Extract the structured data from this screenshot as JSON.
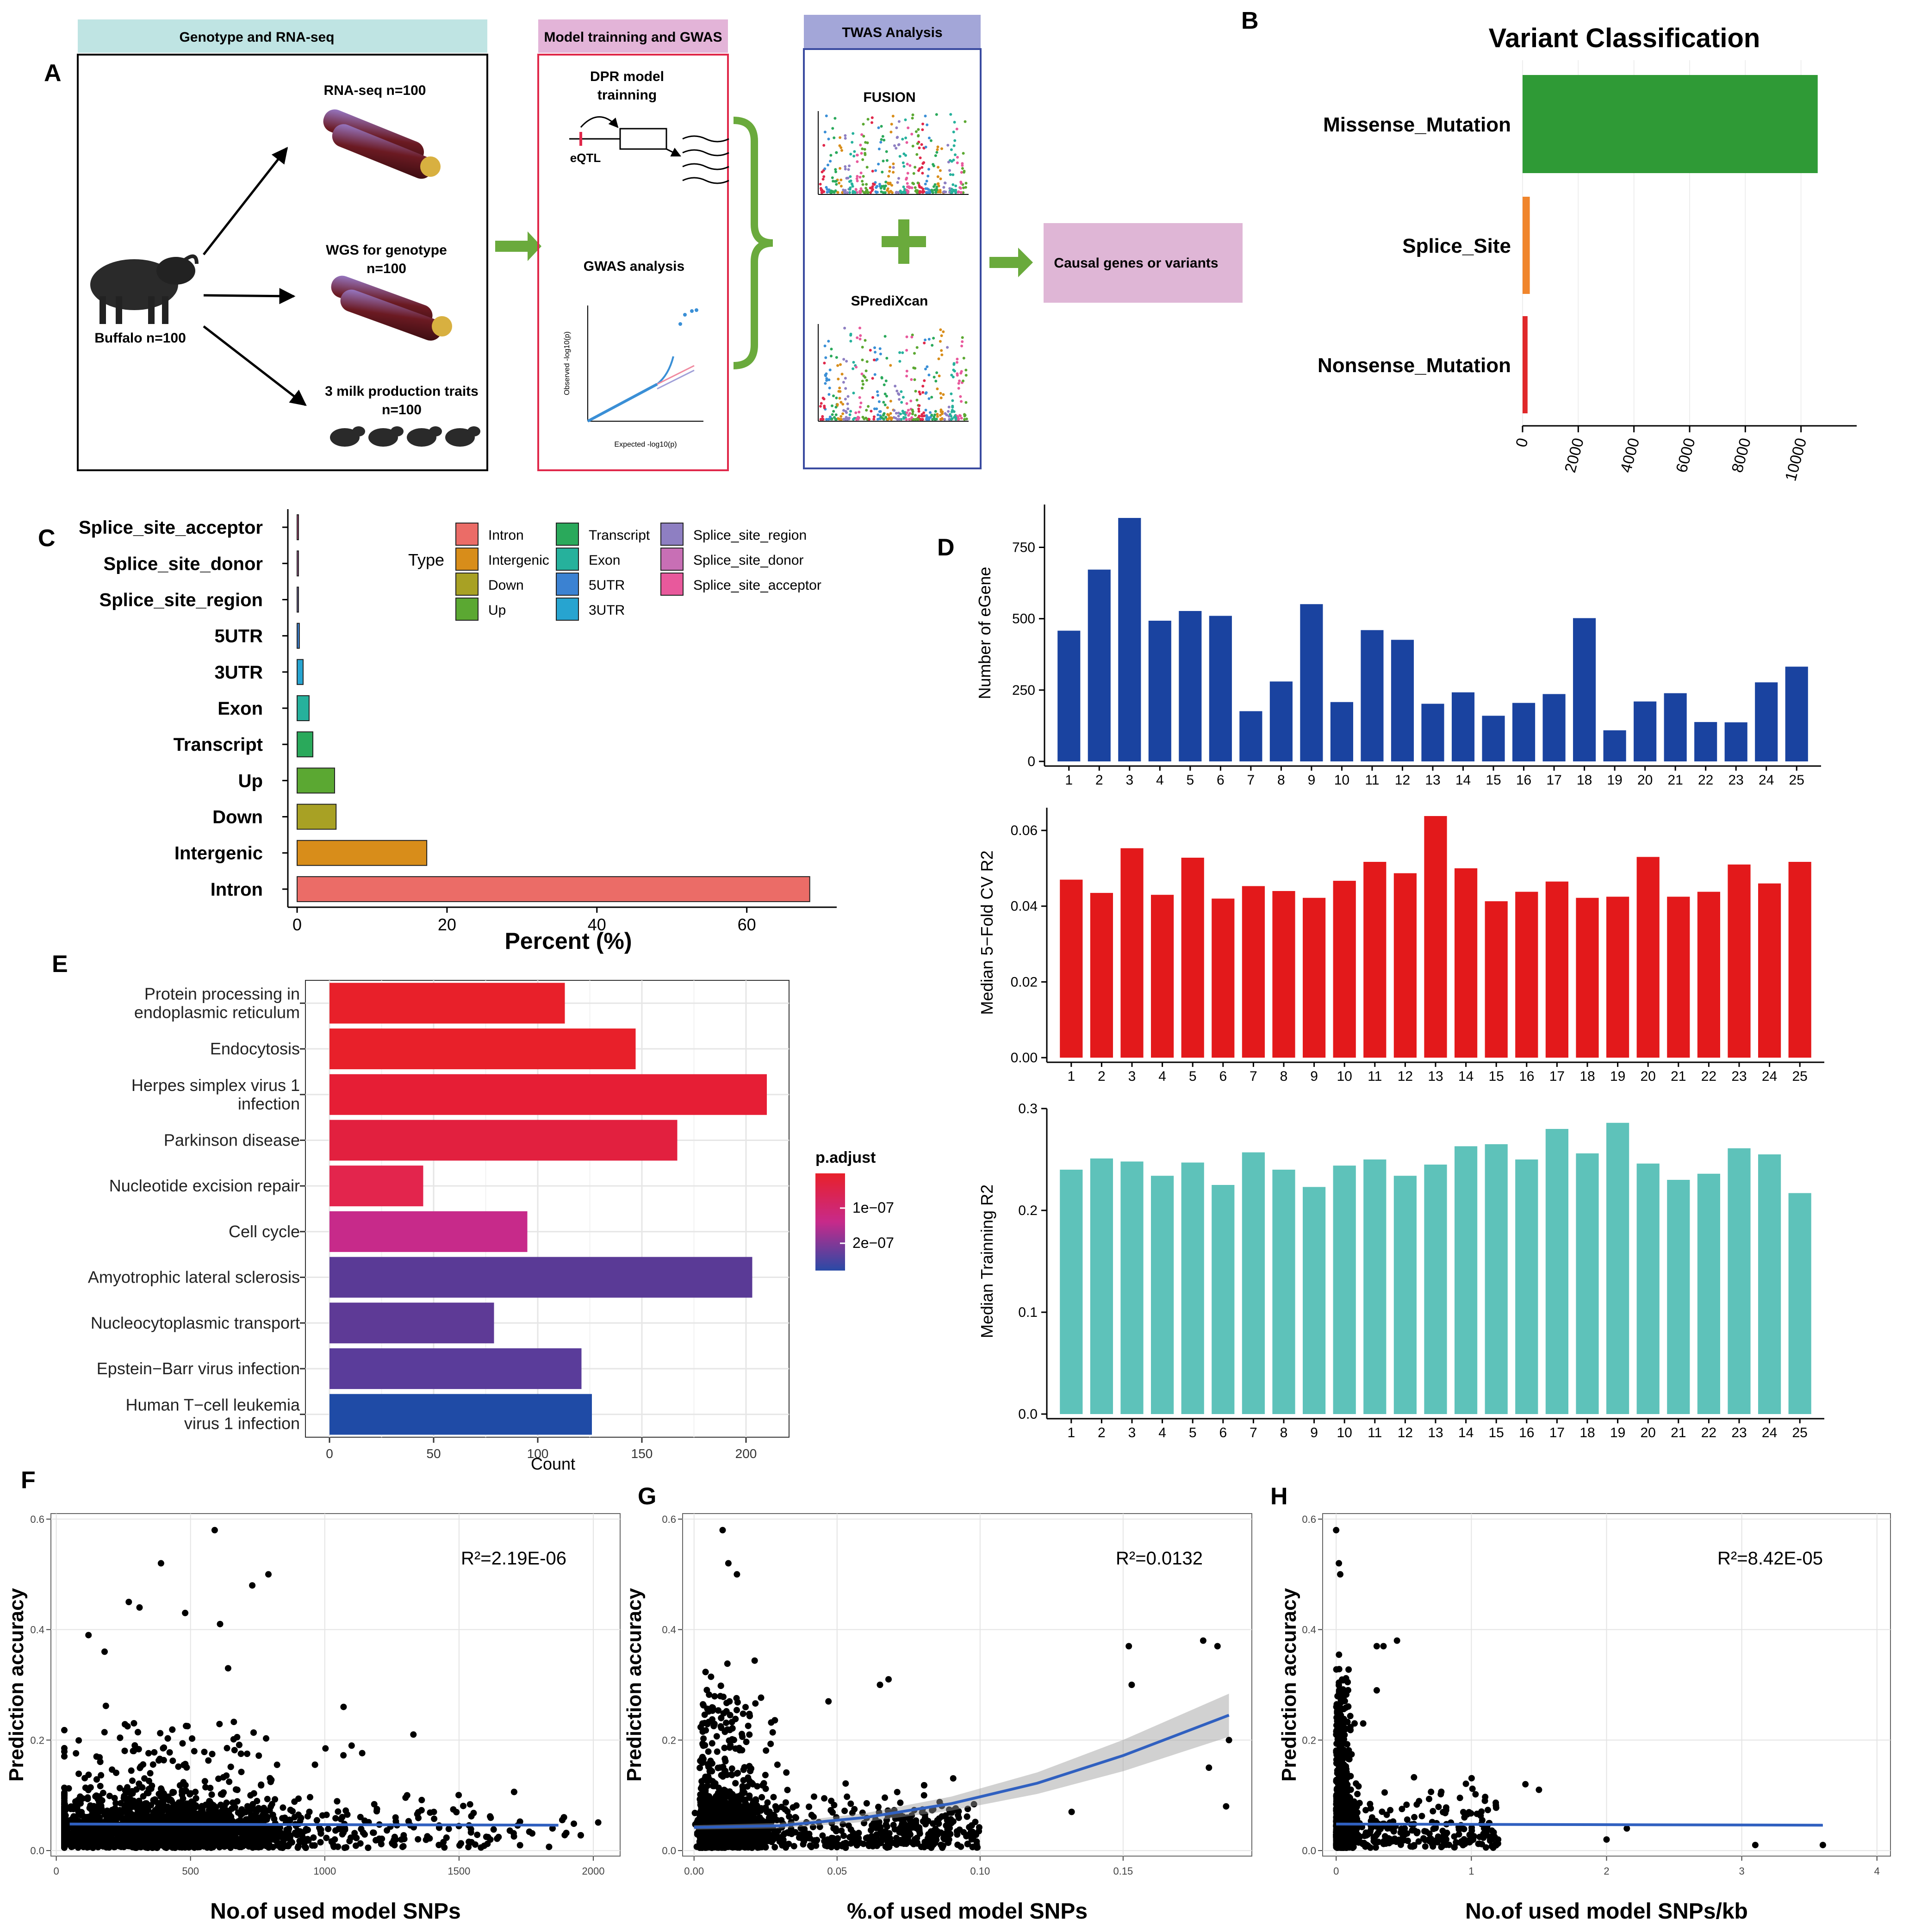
{
  "panels": {
    "A": {
      "label": "A",
      "headers": {
        "genotype": "Genotype and RNA-seq",
        "model": "Model trainning and GWAS",
        "twas": "TWAS Analysis"
      },
      "buffalo": "Buffalo n=100",
      "rnaseq": "RNA-seq n=100",
      "wgs1": "WGS for genotype",
      "wgs2": "n=100",
      "milk1": "3 milk production traits",
      "milk2": "n=100",
      "dpr1": "DPR model",
      "dpr2": "trainning",
      "eqtl": "eQTL",
      "gwas": "GWAS analysis",
      "qq_ylabel": "Observed -log10(p)",
      "qq_xlabel": "Expected -log10(p)",
      "fusion": "FUSION",
      "sprediXcan": "SPrediXcan",
      "causal": "Causal genes or variants"
    },
    "B": {
      "label": "B"
    },
    "C": {
      "label": "C"
    },
    "D": {
      "label": "D"
    },
    "E": {
      "label": "E"
    },
    "F": {
      "label": "F"
    },
    "G": {
      "label": "G"
    },
    "H": {
      "label": "H"
    }
  },
  "colors": {
    "green_arrow": "#6aaa3c",
    "header_teal": "#bfe4e3",
    "header_pink": "#e3b4d8",
    "header_blue": "#a3a6d8",
    "box_red": "#e0284a",
    "box_blue": "#3a4ba0",
    "causal_pink": "#dfb6d6",
    "d_blue": "#1a43a0",
    "d_red": "#e3191b",
    "d_teal": "#5ec2ba",
    "smooth": "#3060c0"
  },
  "chart_data": [
    {
      "id": "B",
      "type": "bar",
      "orientation": "horizontal",
      "title": "Variant Classification",
      "categories": [
        "Missense_Mutation",
        "Splice_Site",
        "Nonsense_Mutation"
      ],
      "values": [
        10600,
        260,
        180
      ],
      "colors": [
        "#2f9a36",
        "#f0852c",
        "#e0282a"
      ],
      "xticks": [
        "0",
        "2000",
        "4000",
        "6000",
        "8000",
        "10000"
      ],
      "xlim": [
        0,
        12000
      ]
    },
    {
      "id": "C",
      "type": "bar",
      "orientation": "horizontal",
      "xlabel": "Percent (%)",
      "xticks": [
        "0",
        "20",
        "40",
        "60"
      ],
      "xlim": [
        0,
        72
      ],
      "categories": [
        "Splice_site_acceptor",
        "Splice_site_donor",
        "Splice_site_region",
        "5UTR",
        "3UTR",
        "Exon",
        "Transcript",
        "Up",
        "Down",
        "Intergenic",
        "Intron"
      ],
      "values": [
        0.05,
        0.05,
        0.1,
        0.3,
        0.8,
        1.6,
        2.1,
        5.0,
        5.2,
        17.3,
        68.4
      ],
      "colors": [
        "#e8599c",
        "#c86fb5",
        "#8e7fc2",
        "#3b82d2",
        "#27a4d0",
        "#26b19c",
        "#2aa95b",
        "#5ba832",
        "#a8a124",
        "#d88d1a",
        "#eb6c67"
      ],
      "legend_title": "Type",
      "legend": [
        {
          "name": "Intron",
          "color": "#eb6c67"
        },
        {
          "name": "Intergenic",
          "color": "#d88d1a"
        },
        {
          "name": "Down",
          "color": "#a8a124"
        },
        {
          "name": "Up",
          "color": "#5ba832"
        },
        {
          "name": "Transcript",
          "color": "#2aa95b"
        },
        {
          "name": "Exon",
          "color": "#26b19c"
        },
        {
          "name": "5UTR",
          "color": "#3b82d2"
        },
        {
          "name": "3UTR",
          "color": "#27a4d0"
        },
        {
          "name": "Splice_site_region",
          "color": "#8e7fc2"
        },
        {
          "name": "Splice_site_donor",
          "color": "#c86fb5"
        },
        {
          "name": "Splice_site_acceptor",
          "color": "#e8599c"
        }
      ]
    },
    {
      "id": "D1",
      "type": "bar",
      "ylabel": "Number of eGene",
      "categories": [
        "1",
        "2",
        "3",
        "4",
        "5",
        "6",
        "7",
        "8",
        "9",
        "10",
        "11",
        "12",
        "13",
        "14",
        "15",
        "16",
        "17",
        "18",
        "19",
        "20",
        "21",
        "22",
        "23",
        "24",
        "25"
      ],
      "values": [
        458,
        672,
        853,
        493,
        527,
        510,
        176,
        280,
        551,
        208,
        460,
        426,
        202,
        242,
        160,
        205,
        236,
        502,
        109,
        210,
        239,
        138,
        137,
        277,
        332
      ],
      "yticks": [
        "0",
        "250",
        "500",
        "750"
      ],
      "ylim": [
        0,
        900
      ]
    },
    {
      "id": "D2",
      "type": "bar",
      "ylabel": "Median 5−Fold CV R2",
      "categories": [
        "1",
        "2",
        "3",
        "4",
        "5",
        "6",
        "7",
        "8",
        "9",
        "10",
        "11",
        "12",
        "13",
        "14",
        "15",
        "16",
        "17",
        "18",
        "19",
        "20",
        "21",
        "22",
        "23",
        "24",
        "25"
      ],
      "values": [
        0.047,
        0.0435,
        0.0553,
        0.043,
        0.0528,
        0.042,
        0.0453,
        0.044,
        0.0422,
        0.0467,
        0.0517,
        0.0487,
        0.0638,
        0.05,
        0.0413,
        0.0438,
        0.0465,
        0.0422,
        0.0425,
        0.053,
        0.0425,
        0.0438,
        0.051,
        0.046,
        0.0517
      ],
      "yticks": [
        "0.00",
        "0.02",
        "0.04",
        "0.06"
      ],
      "ylim": [
        0,
        0.066
      ]
    },
    {
      "id": "D3",
      "type": "bar",
      "ylabel": "Median Trainning R2",
      "categories": [
        "1",
        "2",
        "3",
        "4",
        "5",
        "6",
        "7",
        "8",
        "9",
        "10",
        "11",
        "12",
        "13",
        "14",
        "15",
        "16",
        "17",
        "18",
        "19",
        "20",
        "21",
        "22",
        "23",
        "24",
        "25"
      ],
      "values": [
        0.24,
        0.251,
        0.248,
        0.234,
        0.247,
        0.225,
        0.257,
        0.24,
        0.223,
        0.244,
        0.25,
        0.234,
        0.245,
        0.263,
        0.265,
        0.25,
        0.28,
        0.256,
        0.286,
        0.246,
        0.23,
        0.236,
        0.261,
        0.255,
        0.217
      ],
      "yticks": [
        "0.0",
        "0.1",
        "0.2",
        "0.3"
      ],
      "ylim": [
        0,
        0.3
      ]
    },
    {
      "id": "E",
      "type": "bar",
      "orientation": "horizontal",
      "xlabel": "Count",
      "xticks": [
        "0",
        "50",
        "100",
        "150",
        "200"
      ],
      "xlim": [
        0,
        220
      ],
      "categories": [
        "Protein processing in endoplasmic reticulum",
        "Endocytosis",
        "Herpes simplex virus 1 infection",
        "Parkinson disease",
        "Nucleotide excision repair",
        "Cell cycle",
        "Amyotrophic lateral sclerosis",
        "Nucleocytoplasmic transport",
        "Epstein−Barr virus infection",
        "Human T−cell leukemia virus 1 infection"
      ],
      "label_lines": [
        [
          "Protein processing in",
          "endoplasmic reticulum"
        ],
        [
          "Endocytosis"
        ],
        [
          "Herpes simplex virus 1",
          "infection"
        ],
        [
          "Parkinson disease"
        ],
        [
          "Nucleotide excision repair"
        ],
        [
          "Cell cycle"
        ],
        [
          "Amyotrophic lateral sclerosis"
        ],
        [
          "Nucleocytoplasmic transport"
        ],
        [
          "Epstein−Barr virus infection"
        ],
        [
          "Human T−cell leukemia",
          "virus 1 infection"
        ]
      ],
      "values": [
        113,
        147,
        210,
        167,
        45,
        95,
        203,
        79,
        121,
        126
      ],
      "colors": [
        "#e8202a",
        "#e8202a",
        "#e61e35",
        "#e2203f",
        "#e3254d",
        "#c72a8a",
        "#5a3a96",
        "#5e3a96",
        "#5a3c9a",
        "#1f4ba6"
      ],
      "legend_title": "p.adjust",
      "legend_ticks": [
        "1e−07",
        "2e−07"
      ]
    },
    {
      "id": "F",
      "type": "scatter",
      "xlabel": "No.of used model SNPs",
      "ylabel": "Prediction accuracy",
      "annotation": "R²=2.19E-06",
      "xticks": [
        "0",
        "500",
        "1000",
        "1500",
        "2000"
      ],
      "yticks": [
        "0.0",
        "0.2",
        "0.4",
        "0.6"
      ],
      "xlim": [
        -20,
        2100
      ],
      "ylim": [
        -0.01,
        0.61
      ],
      "outliers": [
        [
          590,
          0.58
        ],
        [
          790,
          0.5
        ],
        [
          390,
          0.52
        ],
        [
          730,
          0.48
        ],
        [
          270,
          0.45
        ],
        [
          310,
          0.44
        ],
        [
          480,
          0.43
        ],
        [
          610,
          0.41
        ],
        [
          1070,
          0.26
        ],
        [
          1330,
          0.21
        ],
        [
          1100,
          0.19
        ],
        [
          120,
          0.39
        ],
        [
          180,
          0.36
        ],
        [
          640,
          0.33
        ]
      ],
      "smooth": [
        [
          50,
          0.048
        ],
        [
          1870,
          0.046
        ]
      ]
    },
    {
      "id": "G",
      "type": "scatter",
      "xlabel": "%.of used model SNPs",
      "ylabel": "Prediction accuracy",
      "annotation": "R²=0.0132",
      "xticks": [
        "0.00",
        "0.05",
        "0.10",
        "0.15"
      ],
      "yticks": [
        "0.0",
        "0.2",
        "0.4",
        "0.6"
      ],
      "xlim": [
        -0.004,
        0.195
      ],
      "ylim": [
        -0.01,
        0.61
      ],
      "outliers": [
        [
          0.01,
          0.58
        ],
        [
          0.012,
          0.52
        ],
        [
          0.015,
          0.5
        ],
        [
          0.152,
          0.37
        ],
        [
          0.178,
          0.38
        ],
        [
          0.183,
          0.37
        ],
        [
          0.187,
          0.2
        ],
        [
          0.153,
          0.3
        ],
        [
          0.18,
          0.15
        ],
        [
          0.186,
          0.08
        ],
        [
          0.132,
          0.07
        ],
        [
          0.068,
          0.31
        ],
        [
          0.065,
          0.3
        ],
        [
          0.047,
          0.27
        ]
      ],
      "smooth": [
        [
          0.0,
          0.042
        ],
        [
          0.03,
          0.045
        ],
        [
          0.06,
          0.06
        ],
        [
          0.09,
          0.085
        ],
        [
          0.12,
          0.122
        ],
        [
          0.15,
          0.172
        ],
        [
          0.187,
          0.245
        ]
      ]
    },
    {
      "id": "H",
      "type": "scatter",
      "xlabel": "No.of used model SNPs/kb",
      "ylabel": "Prediction accuracy",
      "annotation": "R²=8.42E-05",
      "xticks": [
        "0",
        "1",
        "2",
        "3",
        "4"
      ],
      "yticks": [
        "0.0",
        "0.2",
        "0.4",
        "0.6"
      ],
      "xlim": [
        -0.1,
        4.1
      ],
      "ylim": [
        -0.01,
        0.61
      ],
      "outliers": [
        [
          0.0,
          0.58
        ],
        [
          0.02,
          0.52
        ],
        [
          0.03,
          0.5
        ],
        [
          0.3,
          0.37
        ],
        [
          0.35,
          0.37
        ],
        [
          0.45,
          0.38
        ],
        [
          0.3,
          0.29
        ],
        [
          0.2,
          0.23
        ],
        [
          3.6,
          0.01
        ],
        [
          2.15,
          0.04
        ],
        [
          2.0,
          0.02
        ],
        [
          3.1,
          0.01
        ],
        [
          1.5,
          0.11
        ],
        [
          1.4,
          0.12
        ],
        [
          1.1,
          0.09
        ]
      ],
      "smooth": [
        [
          0.0,
          0.048
        ],
        [
          3.6,
          0.046
        ]
      ]
    }
  ]
}
